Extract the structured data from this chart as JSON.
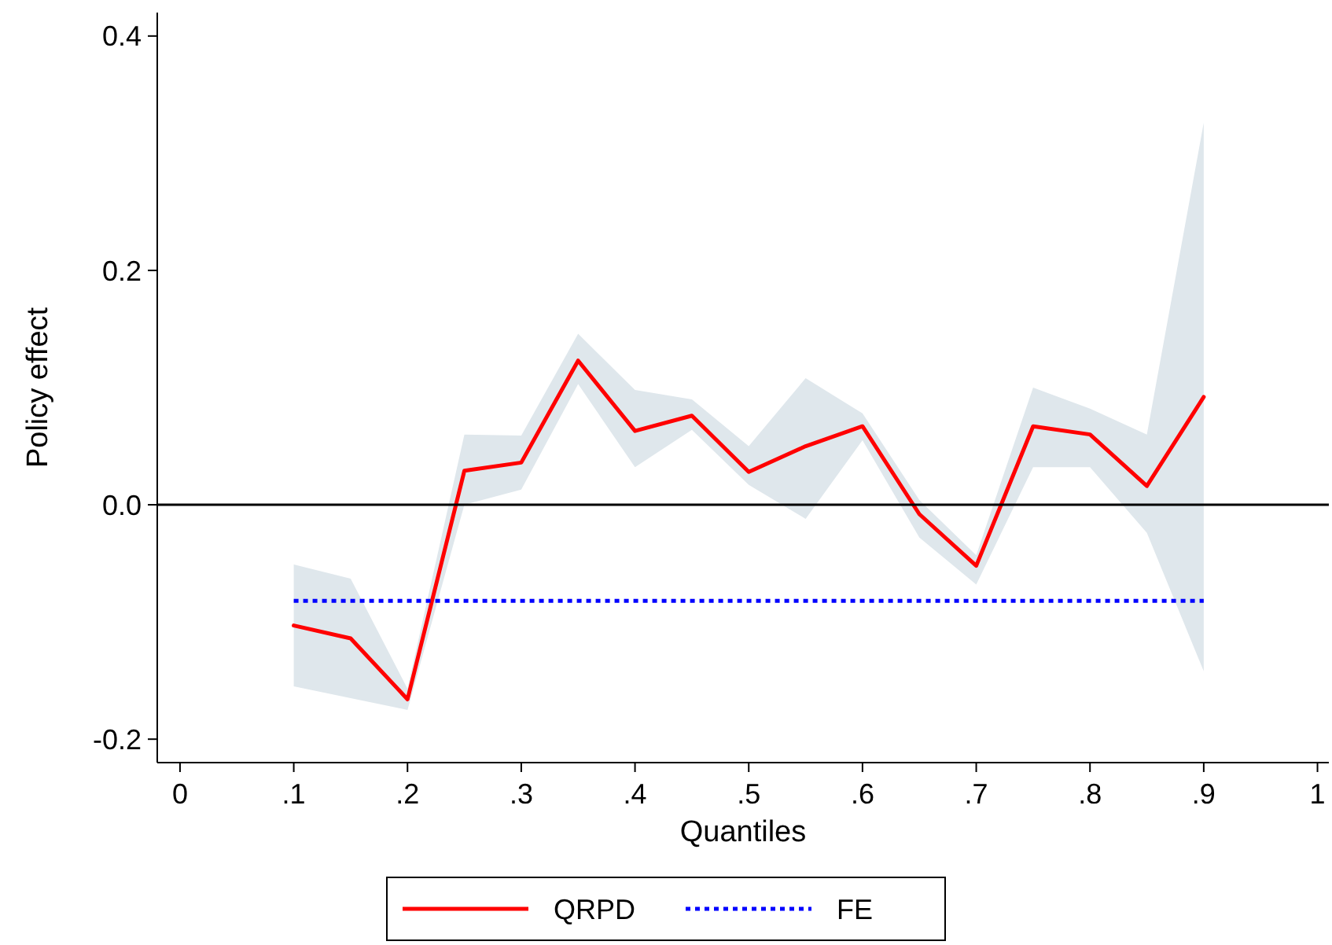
{
  "chart_data": {
    "type": "line",
    "xlabel": "Quantiles",
    "ylabel": "Policy effect",
    "xlim": [
      -0.02,
      1.01
    ],
    "ylim": [
      -0.22,
      0.42
    ],
    "xticks": [
      {
        "value": 0,
        "label": "0"
      },
      {
        "value": 0.1,
        "label": ".1"
      },
      {
        "value": 0.2,
        "label": ".2"
      },
      {
        "value": 0.3,
        "label": ".3"
      },
      {
        "value": 0.4,
        "label": ".4"
      },
      {
        "value": 0.5,
        "label": ".5"
      },
      {
        "value": 0.6,
        "label": ".6"
      },
      {
        "value": 0.7,
        "label": ".7"
      },
      {
        "value": 0.8,
        "label": ".8"
      },
      {
        "value": 0.9,
        "label": ".9"
      },
      {
        "value": 1,
        "label": "1"
      }
    ],
    "yticks": [
      {
        "value": -0.2,
        "label": "-0.2"
      },
      {
        "value": 0,
        "label": "0.0"
      },
      {
        "value": 0.2,
        "label": "0.2"
      },
      {
        "value": 0.4,
        "label": "0.4"
      }
    ],
    "grid": false,
    "legend": "bottom",
    "marker": "none",
    "ref_lines": [
      {
        "axis": "y",
        "value": 0,
        "color": "#000000"
      }
    ],
    "series": [
      {
        "name": "QRPD",
        "color": "#ff0000",
        "line_style": "solid",
        "x": [
          0.1,
          0.15,
          0.2,
          0.25,
          0.3,
          0.35,
          0.4,
          0.45,
          0.5,
          0.55,
          0.6,
          0.65,
          0.7,
          0.75,
          0.8,
          0.85,
          0.9
        ],
        "values": [
          -0.103,
          -0.114,
          -0.166,
          0.029,
          0.036,
          0.123,
          0.063,
          0.076,
          0.028,
          0.05,
          0.067,
          -0.008,
          -0.052,
          0.067,
          0.06,
          0.016,
          0.092
        ],
        "lower": [
          -0.155,
          -0.165,
          -0.175,
          0.0,
          0.013,
          0.103,
          0.032,
          0.064,
          0.017,
          -0.012,
          0.055,
          -0.028,
          -0.068,
          0.032,
          0.032,
          -0.024,
          -0.142
        ],
        "upper": [
          -0.051,
          -0.063,
          -0.157,
          0.06,
          0.059,
          0.146,
          0.098,
          0.09,
          0.05,
          0.108,
          0.078,
          0.004,
          -0.043,
          0.1,
          0.082,
          0.06,
          0.326
        ]
      },
      {
        "name": "FE",
        "color": "#0000ff",
        "line_style": "dotted",
        "x": [
          0.1,
          0.9
        ],
        "values": [
          -0.082,
          -0.082
        ]
      }
    ]
  }
}
